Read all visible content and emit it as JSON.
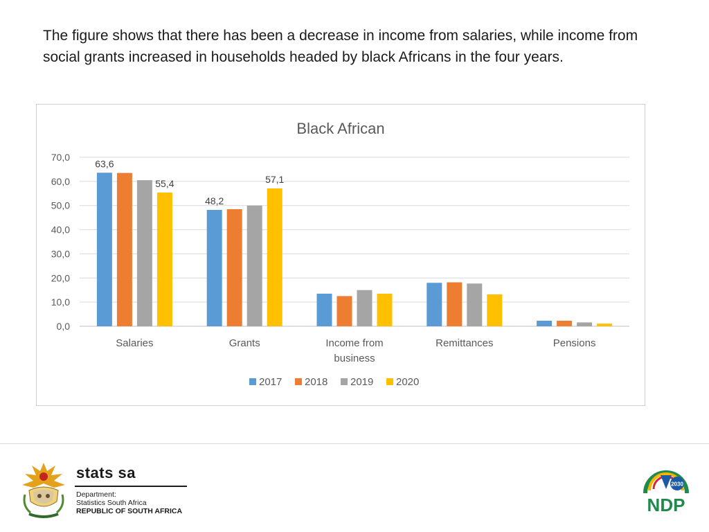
{
  "intro": {
    "text": "The figure shows that there has been a decrease in income from salaries, while income from social grants increased in households headed by black Africans in the four years."
  },
  "chart_data": {
    "type": "bar",
    "title": "Black African",
    "categories": [
      "Salaries",
      "Grants",
      "Income from business",
      "Remittances",
      "Pensions"
    ],
    "category_lines": [
      [
        "Salaries"
      ],
      [
        "Grants"
      ],
      [
        "Income from",
        "business"
      ],
      [
        "Remittances"
      ],
      [
        "Pensions"
      ]
    ],
    "series": [
      {
        "name": "2017",
        "color": "#5b9bd5",
        "values": [
          63.6,
          48.2,
          13.5,
          18.0,
          2.3
        ]
      },
      {
        "name": "2018",
        "color": "#ed7d31",
        "values": [
          63.5,
          48.5,
          12.5,
          18.2,
          2.3
        ]
      },
      {
        "name": "2019",
        "color": "#a5a5a5",
        "values": [
          60.5,
          50.0,
          15.0,
          17.7,
          1.6
        ]
      },
      {
        "name": "2020",
        "color": "#ffc000",
        "values": [
          55.4,
          57.1,
          13.5,
          13.2,
          1.1
        ]
      }
    ],
    "data_labels": [
      {
        "series": 0,
        "category": 0,
        "text": "63,6"
      },
      {
        "series": 3,
        "category": 0,
        "text": "55,4"
      },
      {
        "series": 0,
        "category": 1,
        "text": "48,2"
      },
      {
        "series": 3,
        "category": 1,
        "text": "57,1"
      }
    ],
    "yticks": [
      "0,0",
      "10,0",
      "20,0",
      "30,0",
      "40,0",
      "50,0",
      "60,0",
      "70,0"
    ],
    "ylim": [
      0,
      70
    ],
    "xlabel": "",
    "ylabel": "",
    "grid": true,
    "legend_position": "bottom"
  },
  "footer": {
    "stats_name": "stats sa",
    "dept_line1": "Department:",
    "dept_line2": "Statistics South Africa",
    "dept_line3": "REPUBLIC OF SOUTH AFRICA",
    "ndp_text": "NDP",
    "ndp_year": "2030"
  }
}
